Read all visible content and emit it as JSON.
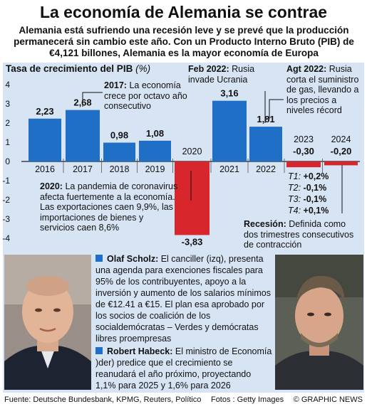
{
  "header": {
    "title": "La economía de Alemania se contrae",
    "subtitle": "Alemania está sufriendo una recesión leve y se prevé que la producción permanecerá sin cambio este año. Con un Producto Interno Bruto (PIB) de €4,121 billones, Alemania es la mayor economía de Europa"
  },
  "chart_data": {
    "type": "bar",
    "title": "Tasa de crecimiento del PIB",
    "unit": "(%)",
    "categories": [
      "2016",
      "2017",
      "2018",
      "2019",
      "2020",
      "2021",
      "2022",
      "2023",
      "2024"
    ],
    "values": [
      2.23,
      2.68,
      0.98,
      1.08,
      -3.83,
      3.16,
      1.81,
      -0.3,
      -0.2
    ],
    "value_labels": [
      "2,23",
      "2,68",
      "0,98",
      "1,08",
      "-3,83",
      "3,16",
      "1,81",
      "-0,30",
      "-0,20"
    ],
    "ylim": [
      -4,
      4
    ],
    "yticks": [
      "4",
      "3",
      "2",
      "1",
      "0",
      "-1",
      "-2",
      "-3",
      "-4"
    ],
    "colors": {
      "positive": "#1f6fc6",
      "negative": "#d7262c",
      "panel": "#d6e4f3"
    }
  },
  "annotations": {
    "a2017_bold": "2017:",
    "a2017": "La economía crece por octavo año consecutivo",
    "a2020_bold": "2020:",
    "a2020": "La pandemia de coronavirus afecta fuertemente a la economía. Las exportaciones caen 9,9%, las importaciones de bienes y servicios caen 8,6%",
    "feb2022_bold": "Feb 2022:",
    "feb2022": "Rusia invade Ucrania",
    "ago2022_bold": "Agt 2022:",
    "ago2022": "Rusia corta el suministro de gas, llevando a los precios a niveles récord",
    "recession_bold": "Recesión:",
    "recession": "Definida como dos trimestres consecutivos de contracción"
  },
  "quarters": [
    {
      "label": "T1:",
      "value": "+0,2%"
    },
    {
      "label": "T2:",
      "value": "-0,1%"
    },
    {
      "label": "T3:",
      "value": "-0,1%"
    },
    {
      "label": "T4:",
      "value": "+0,1%"
    }
  ],
  "bios": {
    "scholz_name": "Olaf Scholz:",
    "scholz_text": "El canciller (izq), presenta una agenda para exenciones fiscales para 95% de los contribuyentes, apoyo a la inversión y aumento de los salarios mínimos de €12.41 a €15. El plan esa aprobado por los socios de coalición de los socialdemócratas – Verdes y demócratas libres proempresas",
    "habeck_name": "Robert Habeck:",
    "habeck_text": "El ministro de Economía )der) predice que el crecimiento se reanudará el año próximo, proyectando 1,1% para 2025 y 1,6% para 2026"
  },
  "footer": {
    "source": "Fuente: Deutsche Bundesbank, KPMG, Reuters, Político",
    "photos": "Fotos : Getty Images",
    "credit": "© GRAPHIC NEWS"
  }
}
